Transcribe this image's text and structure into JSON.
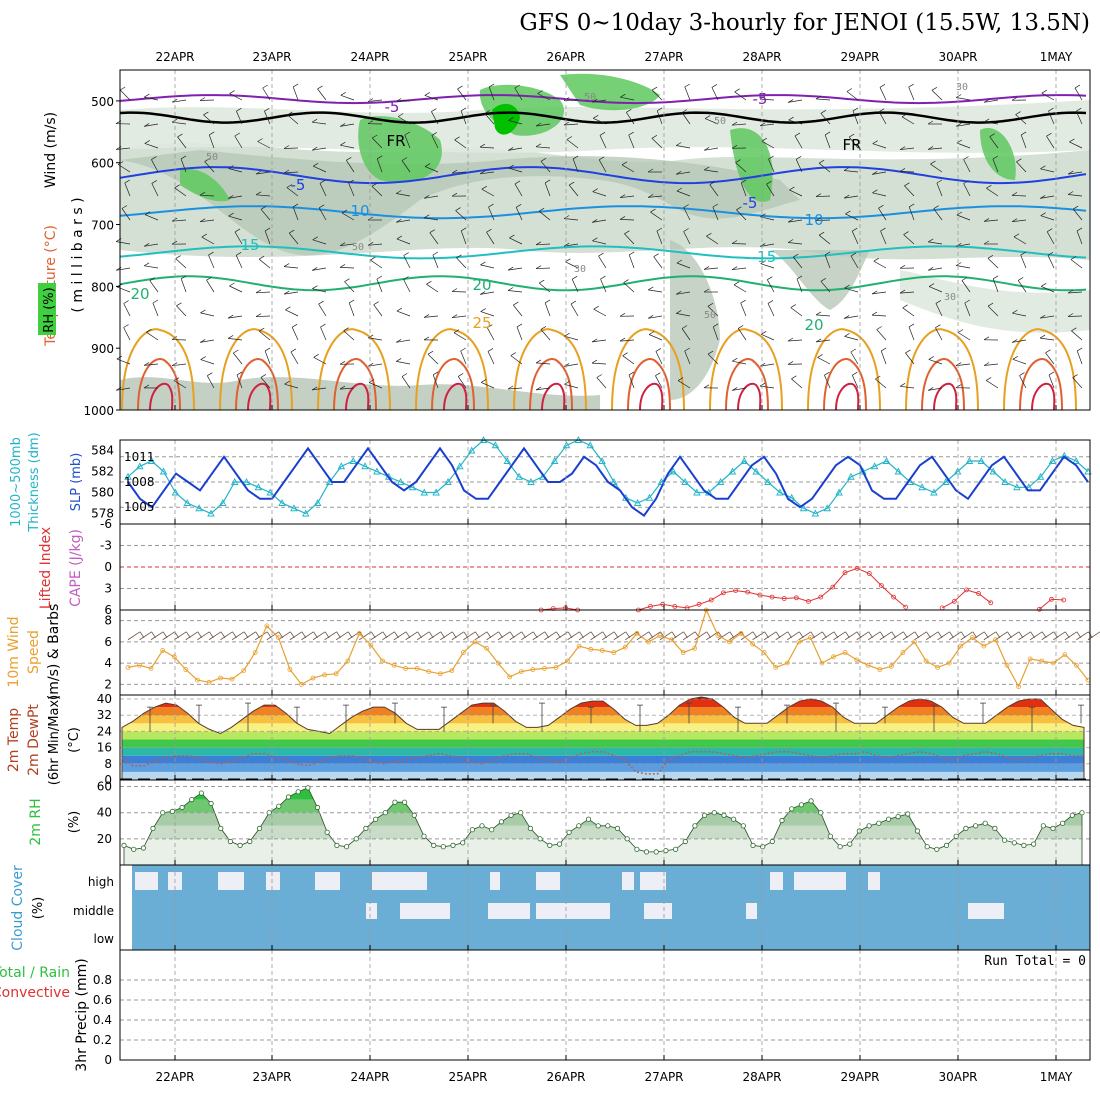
{
  "title": "GFS 0~10day 3-hourly for JENOI (15.5W, 13.5N)",
  "dates": [
    "22APR",
    "23APR",
    "24APR",
    "25APR",
    "26APR",
    "27APR",
    "28APR",
    "29APR",
    "30APR",
    "1MAY"
  ],
  "run_total_label": "Run Total = 0",
  "panels": {
    "upper": {
      "labels": [
        "Wind (m/s)",
        "Temperature (°C)",
        "RH (%)",
        "( m i l l i b a r s )"
      ],
      "label_colors": [
        "#000000",
        "#e08020",
        "#000000",
        "#000000"
      ],
      "y_ticks": [
        "500",
        "600",
        "700",
        "800",
        "900",
        "1000"
      ],
      "contour_labels": {
        "temp": [
          "-5",
          "-5",
          "FR",
          "FR",
          "-5",
          "-5",
          "10",
          "10",
          "15",
          "-15",
          "20",
          "20",
          "20",
          "25"
        ],
        "rh": [
          "50",
          "50",
          "50",
          "50",
          "50",
          "30",
          "30",
          "30"
        ]
      }
    },
    "slp": {
      "labels": [
        "Thickness (dm)",
        "1000~500mb",
        "SLP (mb)"
      ],
      "left_ticks": [
        "584",
        "582",
        "580",
        "578"
      ],
      "right_ticks": [
        "1011",
        "1008",
        "1005"
      ]
    },
    "cape": {
      "labels": [
        "Lifted Index",
        "CAPE (J/kg)"
      ],
      "left_ticks": [
        "-6",
        "-3",
        "0",
        "3",
        "6"
      ]
    },
    "wind10": {
      "labels": [
        "10m Wind",
        "Speed",
        "(m/s) & Barbs"
      ],
      "y_ticks": [
        "8",
        "6",
        "4",
        "2"
      ]
    },
    "temp2m": {
      "labels": [
        "2m Temp",
        "2m DewPt",
        "(6hr Min/Max)",
        "(°C)"
      ],
      "y_ticks": [
        "40",
        "32",
        "24",
        "16",
        "8",
        "0"
      ]
    },
    "rh2m": {
      "labels": [
        "2m RH",
        "(%)"
      ],
      "y_ticks": [
        "60",
        "40",
        "20"
      ]
    },
    "cloud": {
      "labels": [
        "Cloud Cover",
        "(%)"
      ],
      "levels": [
        "high",
        "middle",
        "low"
      ]
    },
    "precip": {
      "labels": [
        "3hr Precip (mm)",
        "Total / Rain",
        "Convective"
      ],
      "y_ticks": [
        "0.8",
        "0.6",
        "0.4",
        "0.2",
        "0"
      ]
    }
  },
  "colors": {
    "slp": "#1a3fcf",
    "thickness": "#22b4c8",
    "li": "#e03030",
    "cape": "#c060c0",
    "wind_speed": "#e8a030",
    "dewpt": "#b06060",
    "rh_fill": "#2fbf3f",
    "cloud_bg": "#6aaed6",
    "cloud_bar": "#eeeef6",
    "grid": "#999999"
  },
  "chart_data": [
    {
      "type": "line",
      "title": "SLP (mb) / 1000~500mb Thickness (dm)",
      "series": [
        {
          "name": "SLP (mb)",
          "axis": "right",
          "values": [
            1008,
            1006,
            1005,
            1007,
            1009,
            1008,
            1007,
            1009,
            1011,
            1009,
            1007,
            1006,
            1006,
            1008,
            1010,
            1012,
            1010,
            1008,
            1008,
            1010,
            1012,
            1010,
            1008,
            1007,
            1008,
            1010,
            1012,
            1010,
            1007,
            1006,
            1006,
            1008,
            1010,
            1012,
            1010,
            1008,
            1008,
            1009,
            1011,
            1010,
            1008,
            1007,
            1005,
            1004,
            1006,
            1009,
            1011,
            1009,
            1007,
            1006,
            1006,
            1008,
            1010,
            1011,
            1009,
            1006,
            1005,
            1006,
            1008,
            1010,
            1011,
            1010,
            1007,
            1006,
            1006,
            1008,
            1010,
            1011,
            1009,
            1007,
            1006,
            1008,
            1010,
            1011,
            1009,
            1007,
            1007,
            1009,
            1011,
            1010,
            1008
          ]
        },
        {
          "name": "1000~500mb Thickness (dm)",
          "axis": "left",
          "values": [
            581.5,
            582.5,
            583,
            582,
            580,
            579,
            578.5,
            578,
            579,
            581,
            581,
            580.5,
            580,
            579,
            578.5,
            578,
            579,
            581,
            582.5,
            583,
            582.5,
            582,
            581.5,
            581,
            580.5,
            580,
            580,
            581,
            582.5,
            584,
            585,
            584.5,
            583,
            581.5,
            581,
            581.5,
            583,
            584.5,
            585,
            584.5,
            583,
            581,
            579.5,
            579,
            579.5,
            581,
            582,
            581,
            580,
            580,
            581,
            582,
            583,
            582,
            581,
            580,
            579.5,
            578.5,
            578,
            578.5,
            580,
            581.5,
            582,
            582.5,
            583,
            582,
            581,
            580.5,
            580,
            581,
            582,
            583,
            583,
            582,
            581,
            580.5,
            580.5,
            581.5,
            583,
            583.5,
            583,
            582
          ]
        }
      ],
      "ylim_left": [
        577,
        585
      ],
      "ylim_right": [
        1003,
        1013
      ]
    },
    {
      "type": "line",
      "title": "Lifted Index / CAPE (J/kg)",
      "series": [
        {
          "name": "Lifted Index",
          "values": [
            null,
            null,
            null,
            null,
            null,
            null,
            null,
            null,
            null,
            null,
            null,
            null,
            null,
            null,
            null,
            null,
            null,
            null,
            null,
            null,
            null,
            null,
            null,
            null,
            null,
            null,
            null,
            null,
            null,
            null,
            null,
            null,
            null,
            null,
            6,
            5.8,
            5.7,
            6,
            null,
            null,
            null,
            null,
            6,
            5.5,
            5.2,
            5.5,
            5.7,
            5.2,
            4.6,
            3.6,
            3.3,
            3.5,
            3.9,
            4.2,
            4.4,
            4.3,
            4.8,
            4.2,
            2.8,
            0.8,
            0.2,
            0.9,
            2.6,
            4.2,
            5.6,
            null,
            null,
            5.7,
            4.8,
            3.2,
            3.7,
            5.0,
            null,
            null,
            null,
            5.9,
            4.5,
            4.6,
            null,
            null
          ]
        }
      ],
      "ylim": [
        6,
        -6
      ]
    },
    {
      "type": "line",
      "title": "10m Wind Speed (m/s)",
      "series": [
        {
          "name": "10m Wind Speed",
          "values": [
            3.6,
            3.8,
            3.5,
            5.2,
            4.6,
            3.4,
            2.4,
            2.2,
            2.6,
            2.5,
            3.3,
            5.0,
            7.5,
            6.4,
            3.4,
            2.0,
            2.6,
            2.9,
            3.0,
            4.2,
            6.8,
            5.7,
            4.2,
            3.8,
            3.5,
            3.5,
            3.2,
            3.0,
            3.3,
            5.0,
            6.0,
            5.4,
            4.0,
            2.7,
            3.2,
            3.4,
            3.5,
            3.6,
            4.2,
            5.6,
            5.3,
            5.2,
            5.0,
            5.5,
            6.8,
            6.0,
            6.6,
            6.2,
            5.0,
            5.4,
            9.0,
            6.6,
            6.0,
            6.8,
            5.8,
            5.0,
            3.6,
            4.0,
            6.0,
            6.4,
            4.0,
            4.6,
            5.0,
            4.3,
            3.8,
            3.4,
            3.7,
            5.0,
            6.0,
            4.2,
            3.6,
            4.0,
            5.6,
            6.4,
            5.6,
            6.2,
            3.8,
            1.8,
            4.4,
            4.2,
            4.0,
            4.8,
            3.8,
            2.4
          ]
        }
      ],
      "ylim": [
        1,
        9
      ]
    },
    {
      "type": "area",
      "title": "2m Temp / 2m DewPt (°C)",
      "series": [
        {
          "name": "2m Temp",
          "values": [
            26,
            29,
            33,
            36,
            38,
            37,
            33,
            28,
            25,
            23,
            26,
            30,
            34,
            37,
            37,
            33,
            28,
            25,
            24,
            23,
            27,
            31,
            34,
            36,
            36,
            33,
            28,
            25,
            25,
            25,
            29,
            33,
            37,
            38,
            38,
            34,
            29,
            26,
            26,
            27,
            31,
            35,
            38,
            39,
            39,
            35,
            30,
            27,
            27,
            28,
            32,
            37,
            40,
            41,
            40,
            36,
            31,
            28,
            28,
            28,
            32,
            36,
            39,
            40,
            39,
            36,
            31,
            28,
            28,
            28,
            32,
            36,
            39,
            40,
            39,
            36,
            31,
            28,
            28,
            28,
            32,
            36,
            39,
            40,
            40,
            35,
            30,
            27,
            26
          ]
        },
        {
          "name": "2m DewPt",
          "values": [
            11,
            7,
            7,
            9,
            11,
            12,
            12,
            11,
            9,
            8,
            9,
            11,
            13,
            13,
            11,
            10,
            8,
            7,
            9,
            11,
            12,
            12,
            11,
            9,
            8,
            9,
            10,
            11,
            12,
            13,
            12,
            11,
            9,
            8,
            10,
            12,
            13,
            13,
            11,
            10,
            9,
            11,
            13,
            14,
            14,
            12,
            10,
            4,
            3,
            3,
            10,
            12,
            14,
            14,
            14,
            13,
            12,
            11,
            12,
            13,
            14,
            14,
            13,
            12,
            11,
            12,
            13,
            13,
            14,
            12,
            11,
            12,
            13,
            14,
            13,
            11,
            10,
            12,
            13,
            14,
            13,
            11,
            10,
            11,
            12,
            13,
            13,
            12,
            12
          ]
        }
      ],
      "ylim": [
        0,
        42
      ]
    },
    {
      "type": "area",
      "title": "2m RH (%)",
      "series": [
        {
          "name": "2m RH",
          "values": [
            15,
            12,
            13,
            28,
            40,
            41,
            44,
            50,
            55,
            47,
            28,
            18,
            15,
            18,
            28,
            40,
            45,
            52,
            56,
            59,
            44,
            25,
            15,
            14,
            20,
            28,
            35,
            40,
            48,
            48,
            38,
            22,
            15,
            14,
            15,
            17,
            27,
            30,
            27,
            33,
            38,
            40,
            28,
            20,
            15,
            16,
            25,
            30,
            35,
            30,
            30,
            28,
            20,
            12,
            10,
            10,
            11,
            12,
            18,
            30,
            38,
            40,
            38,
            35,
            30,
            15,
            14,
            18,
            34,
            43,
            46,
            49,
            40,
            22,
            14,
            16,
            26,
            30,
            32,
            35,
            37,
            39,
            26,
            14,
            12,
            15,
            22,
            28,
            30,
            32,
            28,
            19,
            17,
            15,
            16,
            30,
            28,
            32,
            38,
            40
          ]
        }
      ],
      "ylim": [
        0,
        65
      ]
    },
    {
      "type": "bar",
      "title": "Cloud Cover (%)",
      "series": [
        {
          "name": "high",
          "values": [
            0,
            0,
            0,
            0,
            0,
            0,
            0,
            0,
            0,
            0,
            0,
            0,
            0,
            0,
            0,
            0,
            0,
            0,
            0,
            0,
            0,
            0,
            0,
            0,
            0,
            0,
            0,
            0,
            0,
            0,
            0,
            0,
            0,
            0,
            0,
            0,
            0,
            0,
            0,
            0,
            0,
            0,
            0,
            0,
            0,
            0,
            0,
            0,
            0,
            0,
            0,
            0,
            0,
            0,
            0,
            0,
            0,
            0,
            0,
            0,
            0,
            0,
            0,
            0,
            0,
            0,
            0,
            0,
            0,
            0,
            0,
            0,
            0,
            0,
            0,
            0,
            0,
            0,
            0,
            0,
            0
          ]
        },
        {
          "name": "middle",
          "values": [
            0,
            0,
            0,
            0,
            0,
            0,
            0,
            0,
            0,
            0,
            0,
            0,
            0,
            0,
            0,
            0,
            0,
            0,
            0,
            0,
            0,
            0,
            0,
            0,
            0,
            0,
            0,
            0,
            0,
            0,
            0,
            0,
            0,
            0,
            0,
            0,
            0,
            0,
            0,
            0,
            0,
            0,
            0,
            0,
            0,
            0,
            0,
            0,
            0,
            0,
            0,
            0,
            0,
            0,
            0,
            0,
            0,
            0,
            0,
            0,
            0,
            0,
            0,
            0,
            0,
            0,
            0,
            0,
            0,
            0,
            0,
            0,
            0,
            0,
            0,
            0,
            0,
            0,
            0,
            0,
            0
          ]
        },
        {
          "name": "low",
          "values": [
            0,
            0,
            0,
            0,
            0,
            0,
            0,
            0,
            0,
            0,
            0,
            0,
            0,
            0,
            0,
            0,
            0,
            0,
            0,
            0,
            0,
            0,
            0,
            0,
            0,
            0,
            0,
            0,
            0,
            0,
            0,
            0,
            0,
            0,
            0,
            0,
            0,
            0,
            0,
            0,
            0,
            0,
            0,
            0,
            0,
            0,
            0,
            0,
            0,
            0,
            0,
            0,
            0,
            0,
            0,
            0,
            0,
            0,
            0,
            0,
            0,
            0,
            0,
            0,
            0,
            0,
            0,
            0,
            0,
            0,
            0,
            0,
            0,
            0,
            0,
            0,
            0,
            0,
            0,
            0,
            0
          ]
        }
      ]
    },
    {
      "type": "bar",
      "title": "3hr Precip (mm)",
      "series": [
        {
          "name": "Total / Rain",
          "values": []
        },
        {
          "name": "Convective",
          "values": []
        }
      ],
      "ylim": [
        0,
        1
      ]
    }
  ]
}
